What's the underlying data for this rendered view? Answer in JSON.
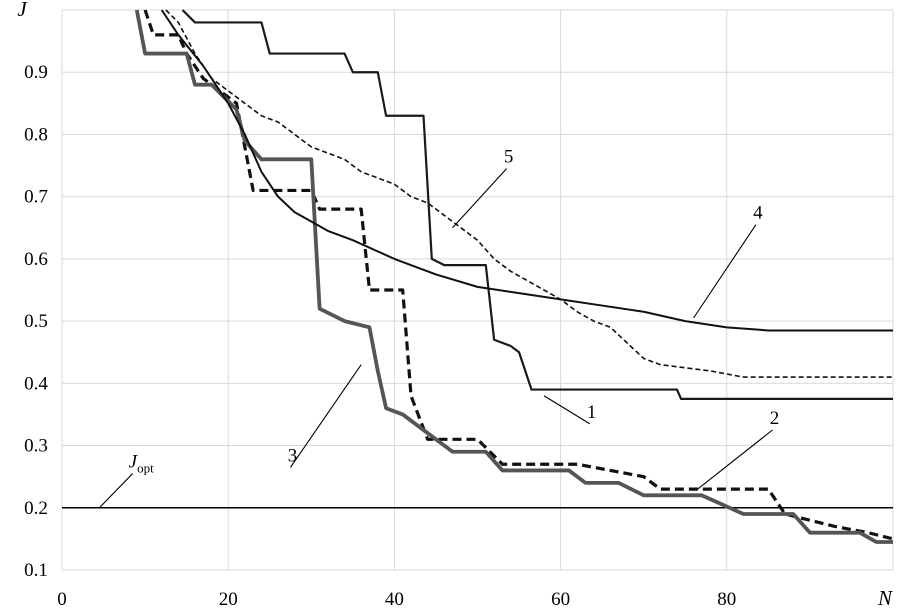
{
  "chart_data": {
    "type": "line",
    "xlabel": "N",
    "ylabel": "J",
    "xlim": [
      0,
      100
    ],
    "ylim": [
      0.1,
      1.0
    ],
    "x_ticks": [
      "0",
      "20",
      "40",
      "60",
      "80",
      "N"
    ],
    "y_ticks": [
      "0.1",
      "0.2",
      "0.3",
      "0.4",
      "0.5",
      "0.6",
      "0.7",
      "0.8",
      "0.9",
      "J"
    ],
    "grid": true,
    "legend": "none (curves numbered directly on plot)",
    "reference_line": {
      "label_main": "J",
      "label_sub": "opt",
      "y": 0.2
    },
    "series": [
      {
        "name": "1",
        "style": "solid thin black, stepwise",
        "points": [
          [
            14.5,
            1.0
          ],
          [
            16,
            0.98
          ],
          [
            24,
            0.98
          ],
          [
            25,
            0.93
          ],
          [
            34,
            0.93
          ],
          [
            35,
            0.9
          ],
          [
            38,
            0.9
          ],
          [
            39,
            0.83
          ],
          [
            43.5,
            0.83
          ],
          [
            44.5,
            0.6
          ],
          [
            46,
            0.59
          ],
          [
            51,
            0.59
          ],
          [
            52,
            0.47
          ],
          [
            54,
            0.46
          ],
          [
            55,
            0.45
          ],
          [
            56.5,
            0.39
          ],
          [
            74,
            0.39
          ],
          [
            74.5,
            0.375
          ],
          [
            103,
            0.375
          ]
        ]
      },
      {
        "name": "2",
        "style": "dashed thick black, stepwise",
        "points": [
          [
            10,
            1.0
          ],
          [
            11,
            0.96
          ],
          [
            14,
            0.96
          ],
          [
            15,
            0.93
          ],
          [
            17,
            0.89
          ],
          [
            19,
            0.87
          ],
          [
            21,
            0.85
          ],
          [
            23,
            0.71
          ],
          [
            30,
            0.71
          ],
          [
            31,
            0.68
          ],
          [
            36,
            0.68
          ],
          [
            37,
            0.55
          ],
          [
            40,
            0.55
          ],
          [
            41,
            0.55
          ],
          [
            42,
            0.38
          ],
          [
            44,
            0.31
          ],
          [
            50,
            0.31
          ],
          [
            53,
            0.27
          ],
          [
            62,
            0.27
          ],
          [
            70,
            0.25
          ],
          [
            72,
            0.23
          ],
          [
            85,
            0.23
          ],
          [
            87,
            0.19
          ],
          [
            93,
            0.17
          ],
          [
            97,
            0.16
          ],
          [
            100,
            0.15
          ],
          [
            103,
            0.15
          ]
        ]
      },
      {
        "name": "3",
        "style": "solid thick gray, stepwise",
        "points": [
          [
            9,
            1.0
          ],
          [
            10,
            0.93
          ],
          [
            15,
            0.93
          ],
          [
            16,
            0.88
          ],
          [
            18,
            0.88
          ],
          [
            21,
            0.84
          ],
          [
            22,
            0.79
          ],
          [
            24,
            0.76
          ],
          [
            30,
            0.76
          ],
          [
            31,
            0.52
          ],
          [
            34,
            0.5
          ],
          [
            37,
            0.49
          ],
          [
            38,
            0.42
          ],
          [
            39,
            0.36
          ],
          [
            41,
            0.35
          ],
          [
            45,
            0.31
          ],
          [
            47,
            0.29
          ],
          [
            51,
            0.29
          ],
          [
            53,
            0.26
          ],
          [
            61,
            0.26
          ],
          [
            63,
            0.24
          ],
          [
            67,
            0.24
          ],
          [
            70,
            0.22
          ],
          [
            77,
            0.22
          ],
          [
            82,
            0.19
          ],
          [
            88,
            0.19
          ],
          [
            90,
            0.16
          ],
          [
            96,
            0.16
          ],
          [
            98,
            0.145
          ],
          [
            103,
            0.145
          ]
        ]
      },
      {
        "name": "4",
        "style": "solid thin black, smooth",
        "points": [
          [
            12,
            1.0
          ],
          [
            14,
            0.96
          ],
          [
            17,
            0.91
          ],
          [
            19,
            0.87
          ],
          [
            20,
            0.85
          ],
          [
            22,
            0.8
          ],
          [
            24,
            0.74
          ],
          [
            26,
            0.7
          ],
          [
            28,
            0.675
          ],
          [
            30,
            0.66
          ],
          [
            32,
            0.645
          ],
          [
            35,
            0.63
          ],
          [
            40,
            0.6
          ],
          [
            45,
            0.575
          ],
          [
            50,
            0.555
          ],
          [
            55,
            0.545
          ],
          [
            60,
            0.535
          ],
          [
            65,
            0.525
          ],
          [
            70,
            0.515
          ],
          [
            75,
            0.5
          ],
          [
            80,
            0.49
          ],
          [
            85,
            0.485
          ],
          [
            90,
            0.485
          ],
          [
            103,
            0.485
          ]
        ]
      },
      {
        "name": "5",
        "style": "fine dashed black",
        "points": [
          [
            12.5,
            1.0
          ],
          [
            14,
            0.98
          ],
          [
            16,
            0.93
          ],
          [
            18,
            0.89
          ],
          [
            20,
            0.87
          ],
          [
            22,
            0.85
          ],
          [
            24,
            0.83
          ],
          [
            26,
            0.82
          ],
          [
            28,
            0.8
          ],
          [
            30,
            0.78
          ],
          [
            32,
            0.77
          ],
          [
            34,
            0.76
          ],
          [
            36,
            0.74
          ],
          [
            38,
            0.73
          ],
          [
            40,
            0.72
          ],
          [
            42,
            0.7
          ],
          [
            44,
            0.69
          ],
          [
            46,
            0.67
          ],
          [
            48,
            0.65
          ],
          [
            50,
            0.63
          ],
          [
            52,
            0.6
          ],
          [
            54,
            0.58
          ],
          [
            56,
            0.565
          ],
          [
            58,
            0.55
          ],
          [
            60,
            0.535
          ],
          [
            62,
            0.515
          ],
          [
            64,
            0.5
          ],
          [
            66,
            0.49
          ],
          [
            68,
            0.465
          ],
          [
            70,
            0.44
          ],
          [
            72,
            0.43
          ],
          [
            75,
            0.425
          ],
          [
            78,
            0.42
          ],
          [
            80,
            0.415
          ],
          [
            82,
            0.41
          ],
          [
            103,
            0.41
          ]
        ]
      }
    ],
    "curve_labels": [
      {
        "text": "1",
        "x": 63.5,
        "y": 0.335,
        "line_to": [
          58,
          0.38
        ]
      },
      {
        "text": "2",
        "x": 85.5,
        "y": 0.325,
        "line_to": [
          76.5,
          0.23
        ]
      },
      {
        "text": "3",
        "x": 27.5,
        "y": 0.265,
        "line_to": [
          36,
          0.43
        ]
      },
      {
        "text": "4",
        "x": 83.5,
        "y": 0.655,
        "line_to": [
          76,
          0.505
        ]
      },
      {
        "text": "5",
        "x": 53.5,
        "y": 0.745,
        "line_to": [
          47,
          0.65
        ]
      },
      {
        "text": "J",
        "x": 8.5,
        "y": 0.255,
        "line_to": [
          4.5,
          0.2
        ]
      }
    ]
  }
}
